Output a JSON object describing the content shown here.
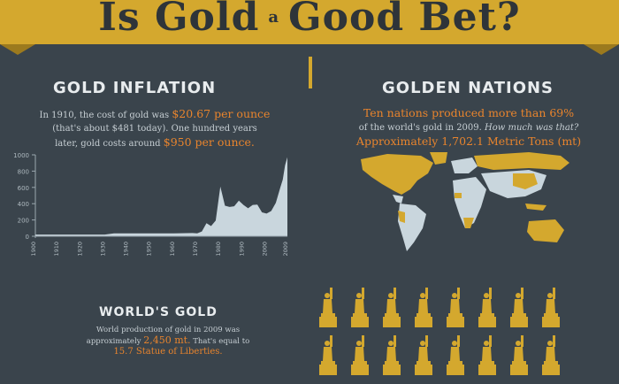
{
  "banner": {
    "title_part1": "Is Gold",
    "title_a": "a",
    "title_part2": "Good Bet?",
    "color": "#d4a82e"
  },
  "inflation": {
    "heading": "GOLD INFLATION",
    "line1_pre": "In 1910, the cost of gold was ",
    "line1_value": "$20.67 per ounce",
    "line2": "(that's about $481 today). One hundred years",
    "line3_pre": "later, gold costs around ",
    "line3_value": "$950 per ounce."
  },
  "nations": {
    "heading": "GOLDEN NATIONS",
    "line1": "Ten nations produced more than 69%",
    "line2_pre": "of the world's gold in 2009. ",
    "line2_italic": "How much was that?",
    "line3": "Approximately 1,702.1 Metric Tons (mt)"
  },
  "world": {
    "heading": "WORLD'S GOLD",
    "line1": "World production of gold in 2009 was",
    "line2_pre": "approximately ",
    "line2_value": "2,450 mt.",
    "line2_post": " That's equal to",
    "line3": "15.7 Statue of Liberties."
  },
  "statue_rows": [
    8,
    8
  ],
  "colors": {
    "background": "#3a444c",
    "gold": "#d4a82e",
    "accent": "#e8842d",
    "chart_area": "#c9d6dd",
    "land_other": "#c9d6dd",
    "land_gold": "#d4a82e"
  },
  "chart_data": {
    "type": "area",
    "title": "",
    "xlabel": "",
    "ylabel": "",
    "ylim": [
      0,
      1000
    ],
    "yticks": [
      "0",
      "200",
      "400",
      "600",
      "800",
      "1000"
    ],
    "xticks": [
      "1900",
      "1910",
      "1920",
      "1930",
      "1940",
      "1950",
      "1960",
      "1970",
      "1980",
      "1990",
      "2000",
      "2009"
    ],
    "x": [
      1900,
      1910,
      1920,
      1930,
      1934,
      1940,
      1950,
      1960,
      1968,
      1970,
      1972,
      1974,
      1976,
      1978,
      1980,
      1982,
      1984,
      1986,
      1988,
      1990,
      1992,
      1994,
      1996,
      1998,
      2000,
      2002,
      2004,
      2006,
      2007,
      2008,
      2009
    ],
    "values": [
      21,
      21,
      21,
      21,
      35,
      35,
      35,
      35,
      39,
      36,
      58,
      160,
      125,
      193,
      610,
      375,
      360,
      368,
      437,
      384,
      344,
      384,
      388,
      294,
      279,
      310,
      410,
      604,
      695,
      872,
      972
    ]
  }
}
